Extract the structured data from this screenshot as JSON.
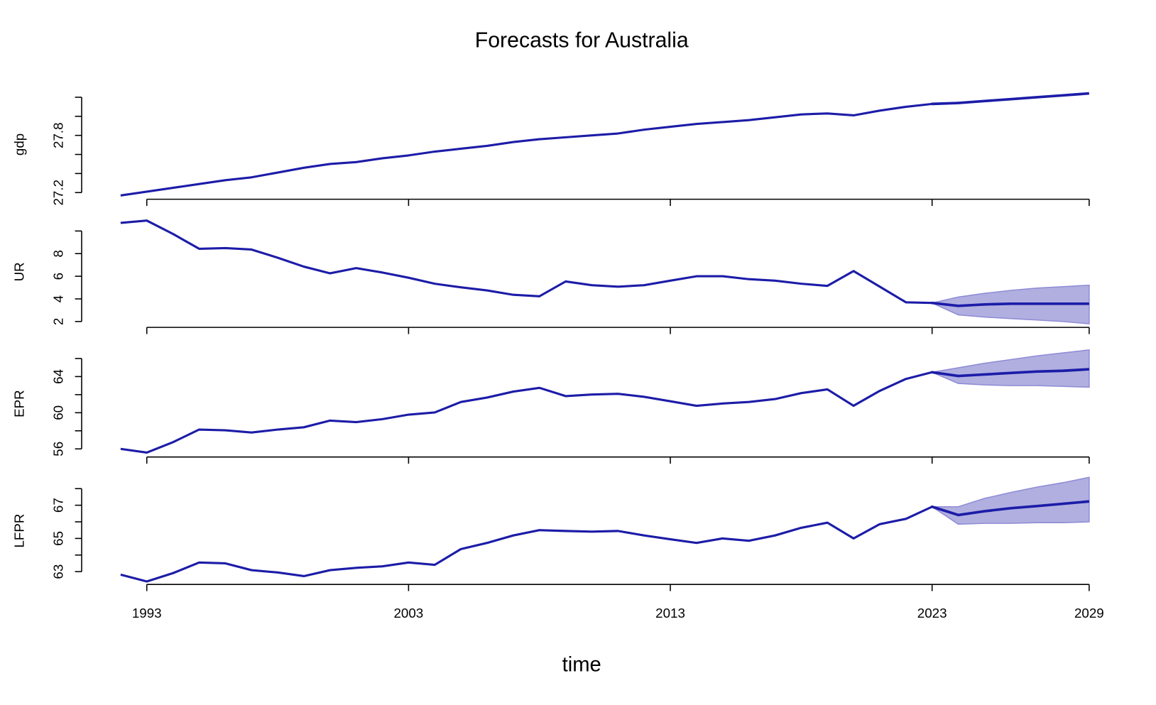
{
  "chart_data": {
    "type": "line",
    "title": "Forecasts for Australia",
    "x_label": "time",
    "color": "#1c1ca8",
    "band_color": "#b1afe0",
    "band_edge_color": "#8f8cd6",
    "x": [
      1992,
      1993,
      1994,
      1995,
      1996,
      1997,
      1998,
      1999,
      2000,
      2001,
      2002,
      2003,
      2004,
      2005,
      2006,
      2007,
      2008,
      2009,
      2010,
      2011,
      2012,
      2013,
      2014,
      2015,
      2016,
      2017,
      2018,
      2019,
      2020,
      2021,
      2022,
      2023
    ],
    "forecast_x": [
      2024,
      2025,
      2026,
      2027,
      2028,
      2029
    ],
    "xlim": [
      1992,
      2029
    ],
    "xticks": [
      1993,
      2003,
      2013,
      2023,
      2029
    ],
    "panels": [
      {
        "ylabel": "gdp",
        "ylim": [
          27.13,
          28.28
        ],
        "yticks": [
          27.2,
          27.8
        ],
        "yminor_ticks": [
          27.4,
          27.6,
          28.0,
          28.2
        ],
        "values": [
          27.17,
          27.21,
          27.25,
          27.29,
          27.33,
          27.36,
          27.41,
          27.46,
          27.5,
          27.52,
          27.56,
          27.59,
          27.63,
          27.66,
          27.69,
          27.73,
          27.76,
          27.78,
          27.8,
          27.82,
          27.86,
          27.89,
          27.92,
          27.94,
          27.96,
          27.99,
          28.02,
          28.03,
          28.01,
          28.06,
          28.1,
          28.13
        ],
        "forecast": [
          28.14,
          28.16,
          28.18,
          28.2,
          28.22,
          28.24
        ]
      },
      {
        "ylabel": "UR",
        "ylim": [
          1.48,
          11.3
        ],
        "yticks": [
          2,
          4,
          6,
          8
        ],
        "yminor_ticks": [
          10
        ],
        "values": [
          10.72,
          10.92,
          9.74,
          8.43,
          8.49,
          8.36,
          7.64,
          6.85,
          6.26,
          6.72,
          6.33,
          5.87,
          5.34,
          5.02,
          4.75,
          4.36,
          4.23,
          5.54,
          5.21,
          5.08,
          5.21,
          5.61,
          6.0,
          6.0,
          5.74,
          5.61,
          5.34,
          5.15,
          6.46,
          5.08,
          3.7,
          3.64
        ],
        "forecast": [
          3.38,
          3.51,
          3.57,
          3.57,
          3.57,
          3.57
        ],
        "lower": [
          2.59,
          2.39,
          2.26,
          2.13,
          2.0,
          1.8
        ],
        "upper": [
          4.16,
          4.49,
          4.75,
          4.95,
          5.08,
          5.21
        ]
      },
      {
        "ylabel": "EPR",
        "ylim": [
          55.1,
          66.9
        ],
        "yticks": [
          56,
          60,
          64
        ],
        "yminor_ticks": [
          58,
          62,
          66
        ],
        "values": [
          56.0,
          55.59,
          56.74,
          58.14,
          58.06,
          57.81,
          58.14,
          58.39,
          59.13,
          58.96,
          59.29,
          59.79,
          60.03,
          61.19,
          61.68,
          62.34,
          62.75,
          61.84,
          62.01,
          62.09,
          61.76,
          61.27,
          60.77,
          61.02,
          61.19,
          61.51,
          62.17,
          62.58,
          60.77,
          62.42,
          63.74,
          64.48
        ],
        "forecast": [
          64.07,
          64.23,
          64.4,
          64.56,
          64.64,
          64.81
        ],
        "lower": [
          63.24,
          63.08,
          63.0,
          63.0,
          62.91,
          62.83
        ],
        "upper": [
          64.97,
          65.47,
          65.88,
          66.29,
          66.62,
          66.95
        ]
      },
      {
        "ylabel": "LFPR",
        "ylim": [
          62.23,
          68.7
        ],
        "yticks": [
          63,
          65,
          67
        ],
        "yminor_ticks": [
          64,
          66,
          68
        ],
        "values": [
          62.82,
          62.41,
          62.91,
          63.55,
          63.5,
          63.09,
          62.95,
          62.73,
          63.09,
          63.23,
          63.32,
          63.55,
          63.41,
          64.36,
          64.73,
          65.18,
          65.5,
          65.45,
          65.41,
          65.45,
          65.18,
          64.95,
          64.73,
          65.0,
          64.86,
          65.18,
          65.64,
          65.95,
          65.0,
          65.86,
          66.18,
          66.91
        ],
        "forecast": [
          66.41,
          66.64,
          66.82,
          66.95,
          67.09,
          67.23
        ],
        "lower": [
          65.86,
          65.91,
          65.91,
          65.95,
          65.95,
          66.0
        ],
        "upper": [
          66.91,
          67.41,
          67.77,
          68.09,
          68.36,
          68.68
        ]
      }
    ]
  }
}
